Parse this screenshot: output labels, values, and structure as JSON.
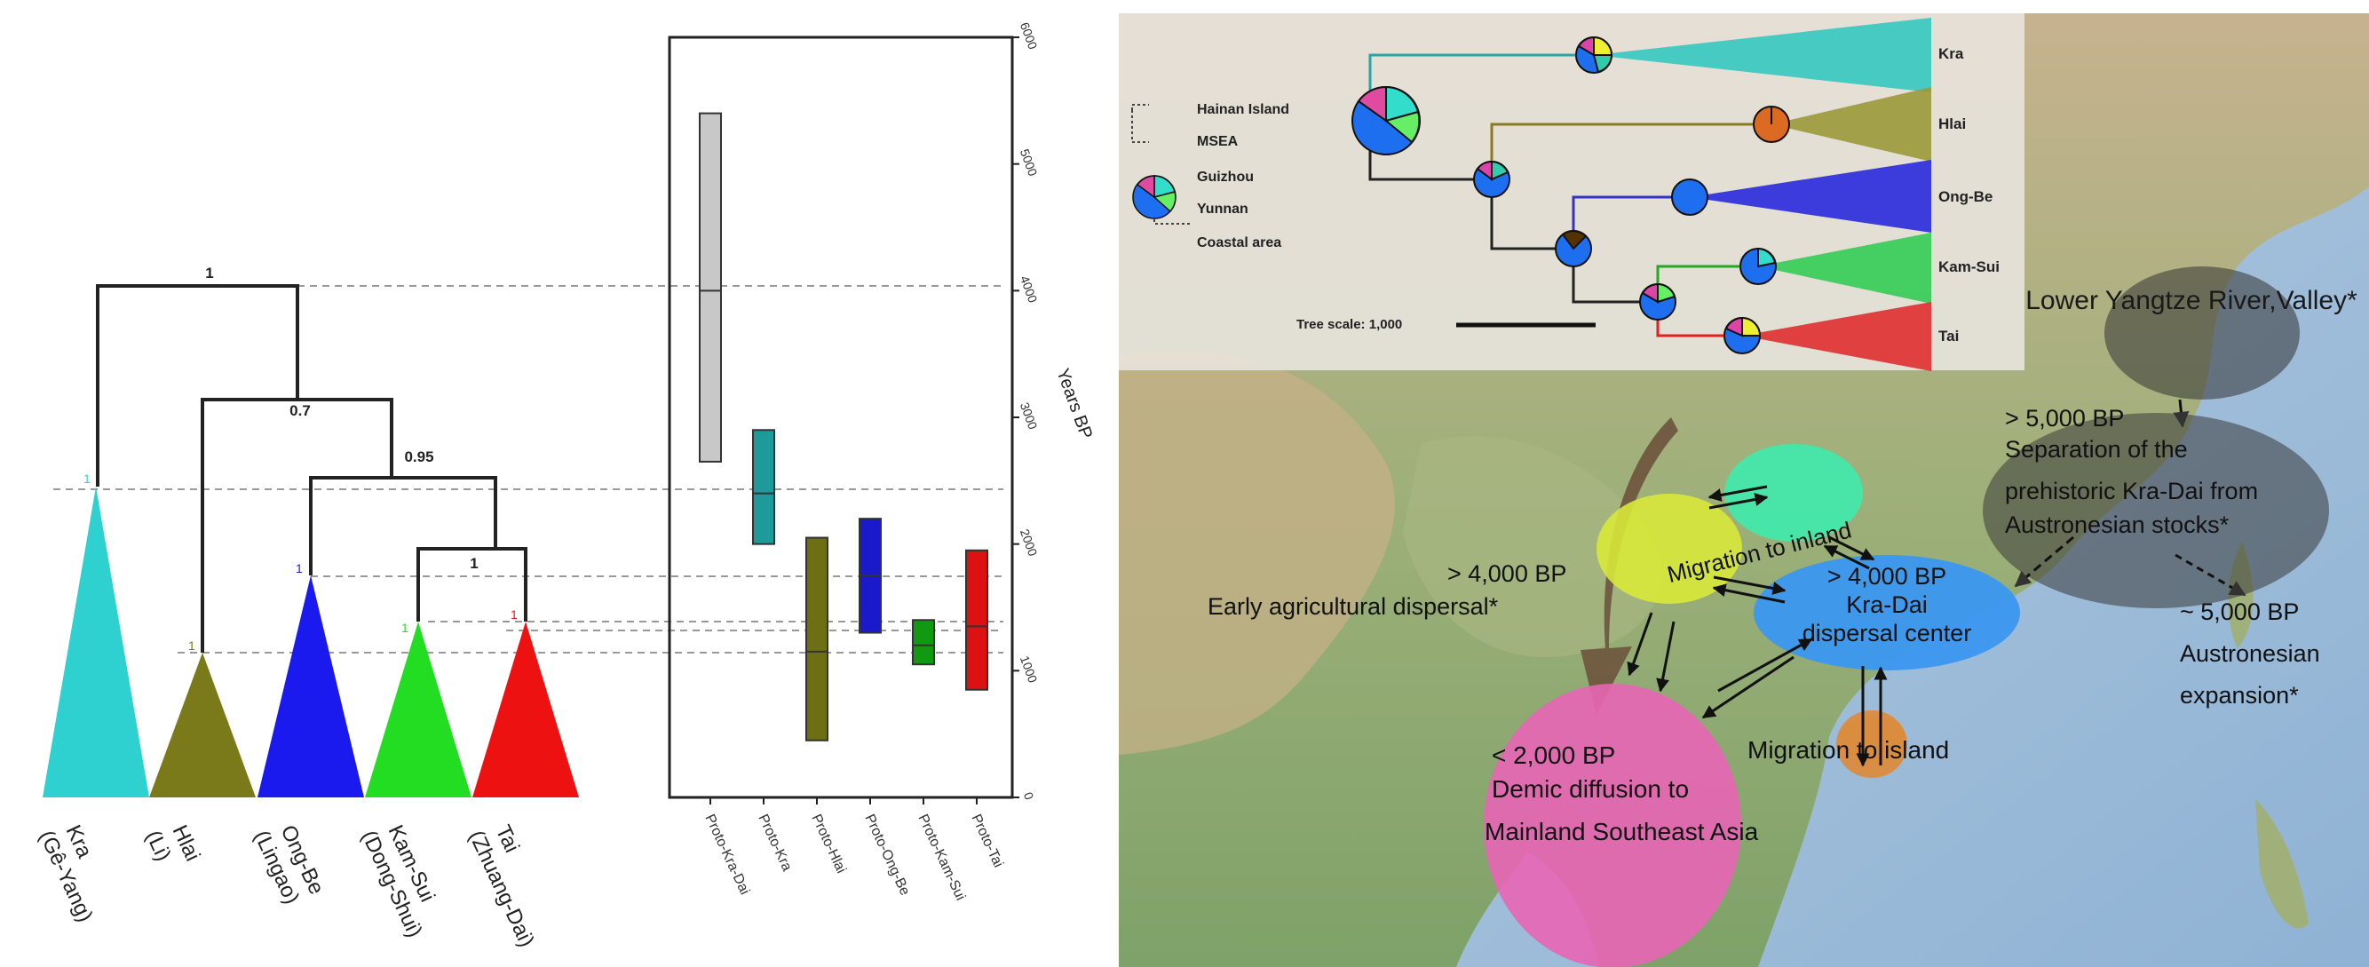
{
  "tree": {
    "support": [
      "1",
      "0.7",
      "0.95",
      "1"
    ],
    "tip_support": [
      "1",
      "1",
      "1",
      "1",
      "1"
    ],
    "clades": [
      {
        "name": "Kra",
        "sub": "(Gê-Yang)",
        "color": "#2fd0d0"
      },
      {
        "name": "Hlai",
        "sub": "(Li)",
        "color": "#7a7a1a"
      },
      {
        "name": "Ong-Be",
        "sub": "(Lingao)",
        "color": "#1a1aee"
      },
      {
        "name": "Kam-Sui",
        "sub": "(Dong-Shui)",
        "color": "#22dd22"
      },
      {
        "name": "Tai",
        "sub": "(Zhuang-Dai)",
        "color": "#ee1111"
      }
    ]
  },
  "chart_data": {
    "type": "range-bar",
    "ylabel": "Years BP",
    "ylim": [
      0,
      6000
    ],
    "ticks": [
      0,
      1000,
      2000,
      3000,
      4000,
      5000,
      6000
    ],
    "categories": [
      "Proto-Kra-Dai",
      "Proto-Kra",
      "Proto-Hlai",
      "Proto-Ong-Be",
      "Proto-Kam-Sui",
      "Proto-Tai"
    ],
    "series": [
      {
        "low": 2650,
        "high": 5400,
        "mid": 4000,
        "color": "#c8c8c8"
      },
      {
        "low": 2000,
        "high": 2900,
        "mid": 2400,
        "color": "#1f9a9a"
      },
      {
        "low": 450,
        "high": 2050,
        "mid": 1150,
        "color": "#6e6e14"
      },
      {
        "low": 1300,
        "high": 2200,
        "mid": 1750,
        "color": "#1a1acc"
      },
      {
        "low": 1050,
        "high": 1400,
        "mid": 1200,
        "color": "#119911"
      },
      {
        "low": 850,
        "high": 1950,
        "mid": 1350,
        "color": "#dd1111"
      }
    ]
  },
  "map": {
    "legend": [
      "Hainan Island",
      "MSEA",
      "Guizhou",
      "Yunnan",
      "Coastal area"
    ],
    "inset_tips": [
      "Kra",
      "Hlai",
      "Ong-Be",
      "Kam-Sui",
      "Tai"
    ],
    "tree_scale": "Tree scale: 1,000",
    "yangtze": "Lower Yangtze River,Valley*",
    "separation": [
      "> 5,000 BP",
      "Separation of the",
      "prehistoric Kra-Dai from",
      "Austronesian stocks*"
    ],
    "austronesian": [
      "~ 5,000 BP",
      "Austronesian",
      "expansion*"
    ],
    "migration_inland": "Migration to inland",
    "dispersal_center": [
      "> 4,000 BP",
      "Kra-Dai",
      "dispersal center"
    ],
    "early_ag": [
      "> 4,000 BP",
      "Early agricultural dispersal*"
    ],
    "demic": [
      "< 2,000 BP",
      "Demic diffusion to",
      "Mainland Southeast Asia"
    ],
    "migration_island": "Migration to island"
  }
}
